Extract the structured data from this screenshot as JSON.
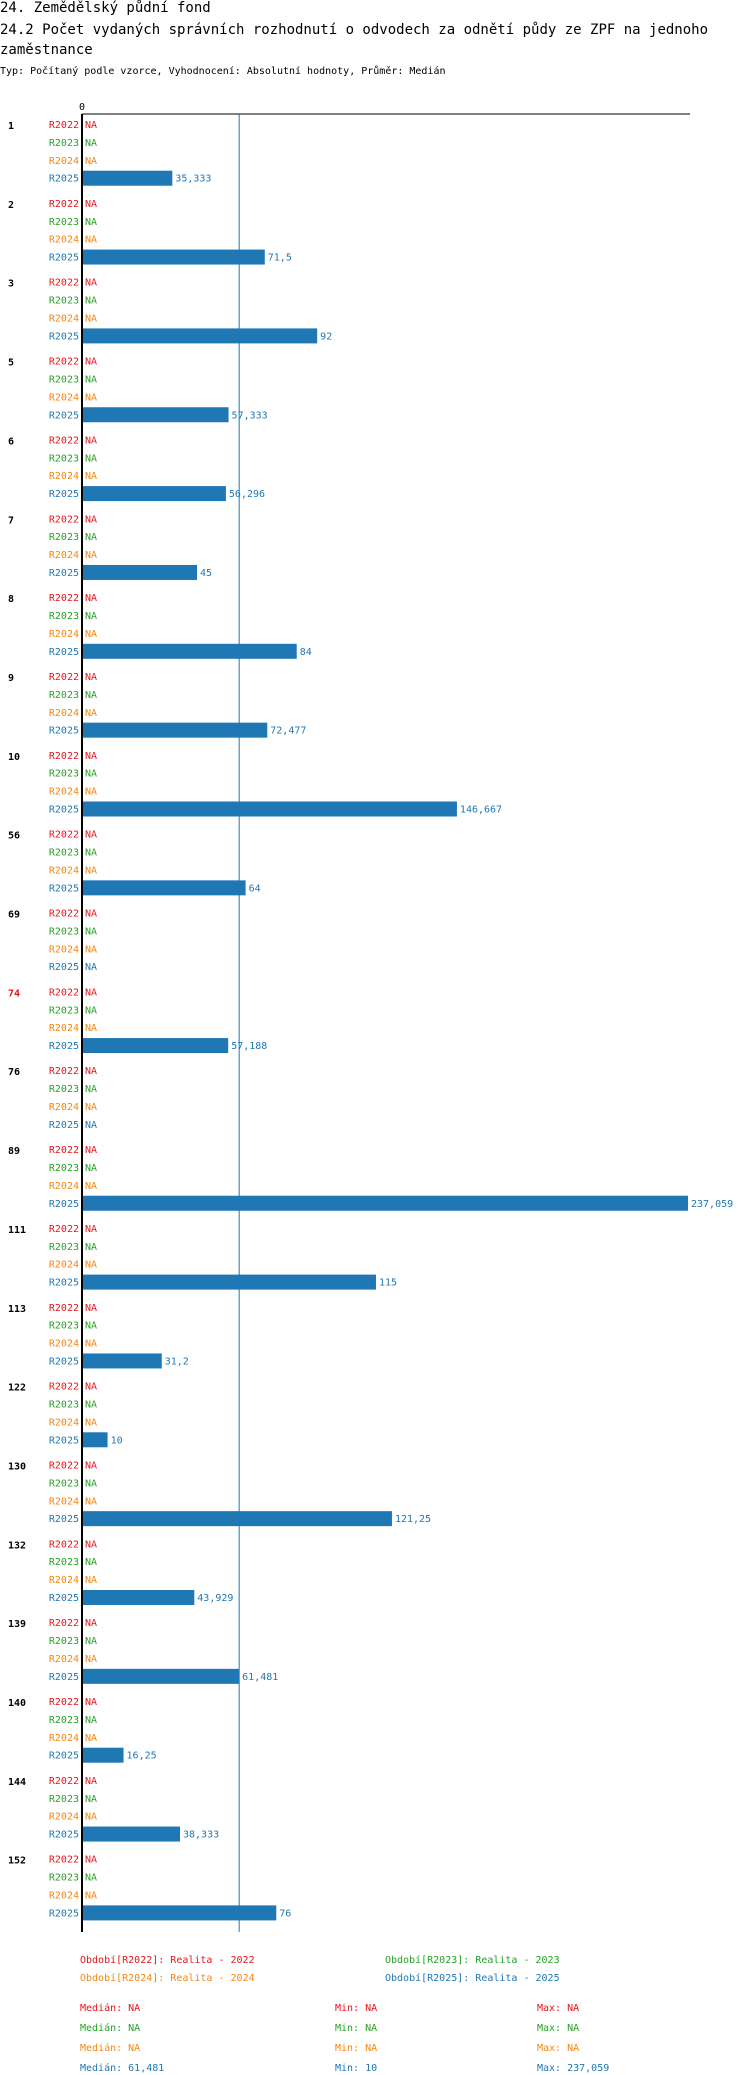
{
  "header": {
    "section": "24. Zemědělský půdní fond",
    "title": "24.2 Počet vydaných správních rozhodnutí o odvodech za odnětí půdy ze ZPF na jednoho zaměstnance",
    "subtitle": "Typ: Počítaný podle vzorce, Vyhodnocení: Absolutní hodnoty, Průměr: Medián"
  },
  "chart_data": {
    "type": "bar",
    "orientation": "horizontal",
    "axis_zero_label": "0",
    "xlim": [
      0,
      237.059
    ],
    "reference_line": {
      "label": "Medián R2025",
      "value": 61.481
    },
    "highlight_category": "74",
    "na_label": "NA",
    "colors": {
      "R2022": "#e8141c",
      "R2023": "#27a127",
      "R2024": "#f7860f",
      "R2025": "#1f77b4"
    },
    "series_names": [
      "R2022",
      "R2023",
      "R2024",
      "R2025"
    ],
    "categories": [
      "1",
      "2",
      "3",
      "5",
      "6",
      "7",
      "8",
      "9",
      "10",
      "56",
      "69",
      "74",
      "76",
      "89",
      "111",
      "113",
      "122",
      "130",
      "132",
      "139",
      "140",
      "144",
      "152"
    ],
    "values": {
      "R2022": [
        null,
        null,
        null,
        null,
        null,
        null,
        null,
        null,
        null,
        null,
        null,
        null,
        null,
        null,
        null,
        null,
        null,
        null,
        null,
        null,
        null,
        null,
        null
      ],
      "R2023": [
        null,
        null,
        null,
        null,
        null,
        null,
        null,
        null,
        null,
        null,
        null,
        null,
        null,
        null,
        null,
        null,
        null,
        null,
        null,
        null,
        null,
        null,
        null
      ],
      "R2024": [
        null,
        null,
        null,
        null,
        null,
        null,
        null,
        null,
        null,
        null,
        null,
        null,
        null,
        null,
        null,
        null,
        null,
        null,
        null,
        null,
        null,
        null,
        null
      ],
      "R2025": [
        35.333,
        71.5,
        92,
        57.333,
        56.296,
        45,
        84,
        72.477,
        146.667,
        64,
        null,
        57.188,
        null,
        237.059,
        115,
        31.2,
        10,
        121.25,
        43.929,
        61.481,
        16.25,
        38.333,
        76
      ]
    },
    "value_labels": {
      "R2025": [
        "35,333",
        "71,5",
        "92",
        "57,333",
        "56,296",
        "45",
        "84",
        "72,477",
        "146,667",
        "64",
        "NA",
        "57,188",
        "NA",
        "237,059",
        "115",
        "31,2",
        "10",
        "121,25",
        "43,929",
        "61,481",
        "16,25",
        "38,333",
        "76"
      ]
    }
  },
  "legend": {
    "periods": [
      "Období[R2022]: Realita - 2022",
      "Období[R2023]: Realita - 2023",
      "Období[R2024]: Realita - 2024",
      "Období[R2025]: Realita - 2025"
    ],
    "stats": [
      {
        "median": "Medián: NA",
        "min": "Min: NA",
        "max": "Max: NA"
      },
      {
        "median": "Medián: NA",
        "min": "Min: NA",
        "max": "Max: NA"
      },
      {
        "median": "Medián: NA",
        "min": "Min: NA",
        "max": "Max: NA"
      },
      {
        "median": "Medián: 61,481",
        "min": "Min: 10",
        "max": "Max: 237,059"
      }
    ]
  }
}
